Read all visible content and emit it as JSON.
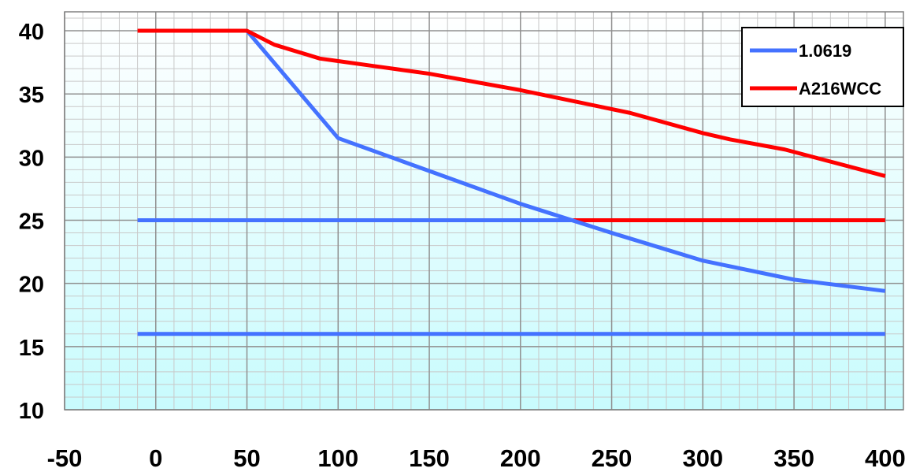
{
  "chart_data": {
    "type": "line",
    "title": "",
    "xlabel": "",
    "ylabel": "",
    "xlim": [
      -50,
      410
    ],
    "ylim": [
      10,
      41.5
    ],
    "x_ticks": [
      -50,
      0,
      50,
      100,
      150,
      200,
      250,
      300,
      350,
      400
    ],
    "y_ticks": [
      10,
      15,
      20,
      25,
      30,
      35,
      40
    ],
    "x_tick_labels": [
      "-50",
      "0",
      "50",
      "100",
      "150",
      "200",
      "250",
      "300",
      "350",
      "400"
    ],
    "y_tick_labels": [
      "10",
      "15",
      "20",
      "25",
      "30",
      "35",
      "40"
    ],
    "grid": true,
    "legend_position": "top-right",
    "series": [
      {
        "name": "1.0619",
        "color": "#4472ff",
        "x": [
          50,
          100,
          150,
          200,
          250,
          300,
          350,
          400
        ],
        "y": [
          40,
          31.5,
          28.9,
          26.3,
          24.0,
          21.8,
          20.3,
          19.4
        ]
      },
      {
        "name": "A216WCC",
        "color": "#ff0000",
        "x": [
          -10,
          50,
          65,
          90,
          100,
          120,
          150,
          200,
          260,
          300,
          315,
          345,
          400
        ],
        "y": [
          40,
          40,
          38.9,
          37.8,
          37.6,
          37.2,
          36.6,
          35.3,
          33.5,
          31.9,
          31.4,
          30.6,
          28.5
        ]
      }
    ],
    "reference_lines": [
      {
        "color": "#4472ff",
        "x": [
          -10,
          400
        ],
        "y": [
          16,
          16
        ]
      },
      {
        "color": "#4472ff",
        "x": [
          -10,
          229
        ],
        "y": [
          25,
          25
        ]
      },
      {
        "color": "#ff0000",
        "x": [
          229,
          400
        ],
        "y": [
          25,
          25
        ]
      }
    ]
  }
}
